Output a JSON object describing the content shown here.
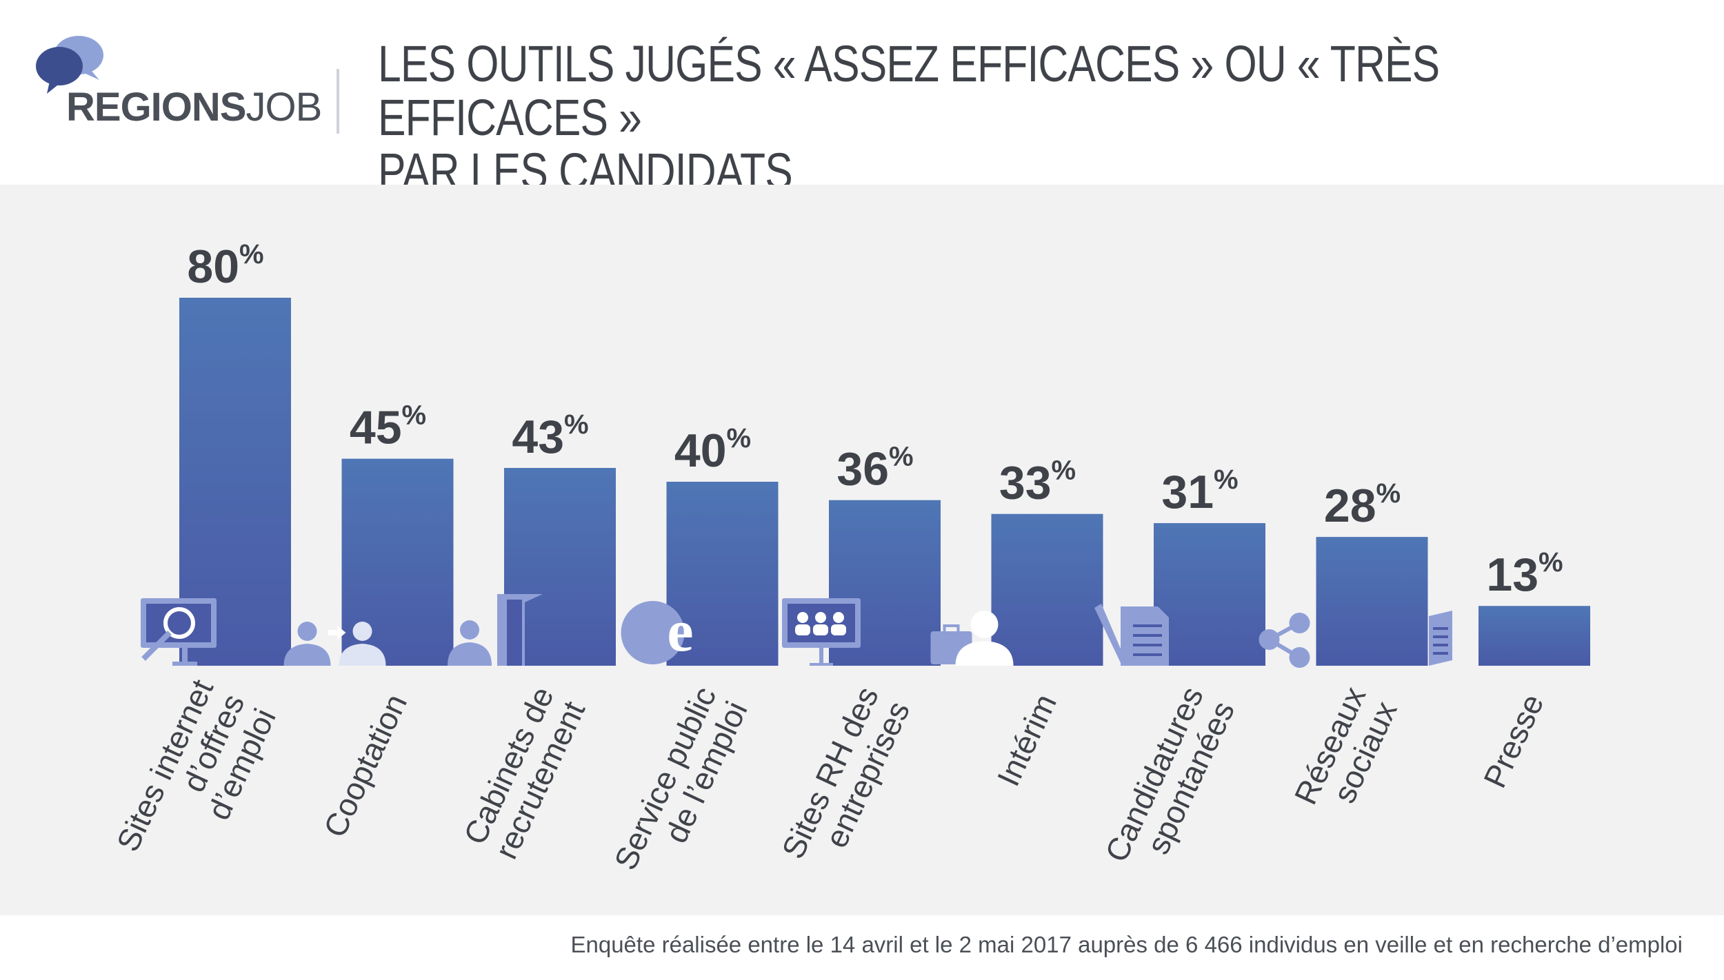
{
  "header": {
    "logo": {
      "brand_bold": "REGIONS",
      "brand_light": "JOB"
    },
    "title": "LES OUTILS JUGÉS « ASSEZ EFFICACES » OU « TRÈS EFFICACES »\nPAR LES CANDIDATS"
  },
  "colors": {
    "bar_top": "#4f76b5",
    "bar_bottom": "#4a5aa6",
    "icon": "#8f9fd6",
    "panel": "#f2f2f2",
    "text": "#3f4349"
  },
  "chart_data": {
    "type": "bar",
    "title": "LES OUTILS JUGÉS « ASSEZ EFFICACES » OU « TRÈS EFFICACES » PAR LES CANDIDATS",
    "unit": "%",
    "ylim": [
      0,
      80
    ],
    "grid": false,
    "categories": [
      "Sites internet d’offres d’emploi",
      "Cooptation",
      "Cabinets de recrutement",
      "Service public de l’emploi",
      "Sites RH des entreprises",
      "Intérim",
      "Candidatures spontanées",
      "Réseaux sociaux",
      "Presse"
    ],
    "category_lines": [
      [
        "Sites internet",
        "d’offres",
        "d’emploi"
      ],
      [
        "Cooptation"
      ],
      [
        "Cabinets de",
        "recrutement"
      ],
      [
        "Service public",
        "de l’emploi"
      ],
      [
        "Sites RH des",
        "entreprises"
      ],
      [
        "Intérim"
      ],
      [
        "Candidatures",
        "spontanées"
      ],
      [
        "Réseaux",
        "sociaux"
      ],
      [
        "Presse"
      ]
    ],
    "icons": [
      "monitor-search-icon",
      "referral-people-icon",
      "recruiter-door-icon",
      "public-service-e-icon",
      "company-hr-screen-icon",
      "temp-worker-icon",
      "application-document-icon",
      "social-share-icon",
      "newspaper-icon"
    ],
    "values": [
      80,
      45,
      43,
      40,
      36,
      33,
      31,
      28,
      13
    ]
  },
  "footnote": "Enquête réalisée entre le 14 avril et le 2 mai 2017 auprès de 6 466 individus en veille et en recherche d’emploi"
}
